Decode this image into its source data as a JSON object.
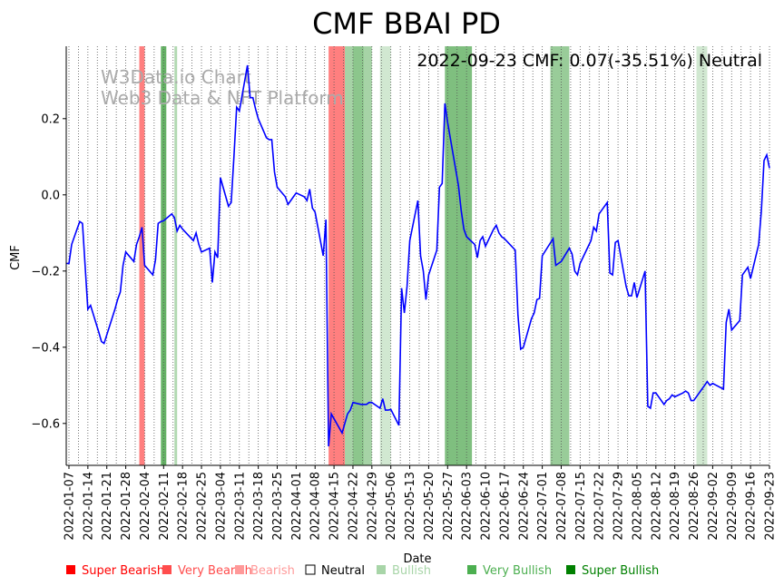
{
  "chart_data": {
    "type": "line",
    "title": "CMF BBAI PD",
    "annotation": "2022-09-23 CMF: 0.07(-35.51%) Neutral",
    "watermark": [
      "W3Data.io Chart",
      "Web3 Data & NFT Platform"
    ],
    "xlabel": "Date",
    "ylabel": "CMF",
    "xlim": [
      "2022-01-06",
      "2022-09-23"
    ],
    "ylim": [
      -0.71,
      0.39
    ],
    "yticks": [
      0.2,
      0.0,
      -0.2,
      -0.4,
      -0.6
    ],
    "ytick_labels": [
      "0.2",
      "0.0",
      "−0.2",
      "−0.4",
      "−0.6"
    ],
    "xticks": [
      "2022-01-07",
      "2022-01-14",
      "2022-01-21",
      "2022-01-28",
      "2022-02-04",
      "2022-02-11",
      "2022-02-18",
      "2022-02-25",
      "2022-03-04",
      "2022-03-11",
      "2022-03-18",
      "2022-03-25",
      "2022-04-01",
      "2022-04-08",
      "2022-04-15",
      "2022-04-22",
      "2022-04-29",
      "2022-05-06",
      "2022-05-13",
      "2022-05-20",
      "2022-05-27",
      "2022-06-03",
      "2022-06-10",
      "2022-06-17",
      "2022-06-24",
      "2022-07-01",
      "2022-07-08",
      "2022-07-15",
      "2022-07-22",
      "2022-07-29",
      "2022-08-05",
      "2022-08-12",
      "2022-08-19",
      "2022-08-26",
      "2022-09-02",
      "2022-09-09",
      "2022-09-16",
      "2022-09-23"
    ],
    "grid": "vertical-dotted",
    "line_color": "#0000ff",
    "series": [
      {
        "x": [
          "2022-01-06",
          "2022-01-07",
          "2022-01-08",
          "2022-01-10",
          "2022-01-11",
          "2022-01-12",
          "2022-01-13",
          "2022-01-14",
          "2022-01-15",
          "2022-01-18",
          "2022-01-19",
          "2022-01-20",
          "2022-01-24",
          "2022-01-25",
          "2022-01-26",
          "2022-01-27",
          "2022-01-28",
          "2022-01-31",
          "2022-02-01",
          "2022-02-02",
          "2022-02-03",
          "2022-02-04",
          "2022-02-07",
          "2022-02-08",
          "2022-02-09",
          "2022-02-10",
          "2022-02-11",
          "2022-02-14",
          "2022-02-15",
          "2022-02-16",
          "2022-02-17",
          "2022-02-18",
          "2022-02-22",
          "2022-02-23",
          "2022-02-24",
          "2022-02-25",
          "2022-02-28",
          "2022-03-01",
          "2022-03-02",
          "2022-03-03",
          "2022-03-04",
          "2022-03-07",
          "2022-03-08",
          "2022-03-09",
          "2022-03-10",
          "2022-03-11",
          "2022-03-14",
          "2022-03-15",
          "2022-03-16",
          "2022-03-17",
          "2022-03-18",
          "2022-03-21",
          "2022-03-22",
          "2022-03-23",
          "2022-03-24",
          "2022-03-25",
          "2022-03-28",
          "2022-03-29",
          "2022-03-30",
          "2022-03-31",
          "2022-04-01",
          "2022-04-04",
          "2022-04-05",
          "2022-04-06",
          "2022-04-07",
          "2022-04-08",
          "2022-04-11",
          "2022-04-12",
          "2022-04-13",
          "2022-04-14",
          "2022-04-18",
          "2022-04-19",
          "2022-04-20",
          "2022-04-21",
          "2022-04-22",
          "2022-04-25",
          "2022-04-26",
          "2022-04-27",
          "2022-04-28",
          "2022-04-29",
          "2022-05-02",
          "2022-05-03",
          "2022-05-04",
          "2022-05-05",
          "2022-05-06",
          "2022-05-09",
          "2022-05-10",
          "2022-05-11",
          "2022-05-12",
          "2022-05-13",
          "2022-05-16",
          "2022-05-17",
          "2022-05-18",
          "2022-05-19",
          "2022-05-20",
          "2022-05-23",
          "2022-05-24",
          "2022-05-25",
          "2022-05-26",
          "2022-05-27",
          "2022-05-31",
          "2022-06-01",
          "2022-06-02",
          "2022-06-03",
          "2022-06-06",
          "2022-06-07",
          "2022-06-08",
          "2022-06-09",
          "2022-06-10",
          "2022-06-13",
          "2022-06-14",
          "2022-06-15",
          "2022-06-16",
          "2022-06-17",
          "2022-06-21",
          "2022-06-22",
          "2022-06-23",
          "2022-06-24",
          "2022-06-27",
          "2022-06-28",
          "2022-06-29",
          "2022-06-30",
          "2022-07-01",
          "2022-07-05",
          "2022-07-06",
          "2022-07-07",
          "2022-07-08",
          "2022-07-11",
          "2022-07-12",
          "2022-07-13",
          "2022-07-14",
          "2022-07-15",
          "2022-07-18",
          "2022-07-19",
          "2022-07-20",
          "2022-07-21",
          "2022-07-22",
          "2022-07-25",
          "2022-07-26",
          "2022-07-27",
          "2022-07-28",
          "2022-07-29",
          "2022-08-01",
          "2022-08-02",
          "2022-08-03",
          "2022-08-04",
          "2022-08-05",
          "2022-08-08",
          "2022-08-09",
          "2022-08-10",
          "2022-08-11",
          "2022-08-12",
          "2022-08-15",
          "2022-08-16",
          "2022-08-17",
          "2022-08-18",
          "2022-08-19",
          "2022-08-22",
          "2022-08-23",
          "2022-08-24",
          "2022-08-25",
          "2022-08-26",
          "2022-08-29",
          "2022-08-30",
          "2022-08-31",
          "2022-09-01",
          "2022-09-02",
          "2022-09-06",
          "2022-09-07",
          "2022-09-08",
          "2022-09-09",
          "2022-09-12",
          "2022-09-13",
          "2022-09-14",
          "2022-09-15",
          "2022-09-16",
          "2022-09-19",
          "2022-09-20",
          "2022-09-21",
          "2022-09-22",
          "2022-09-23"
        ],
        "y": [
          -0.18,
          -0.18,
          -0.13,
          -0.09,
          -0.07,
          -0.075,
          -0.19,
          -0.3,
          -0.29,
          -0.36,
          -0.385,
          -0.39,
          -0.3,
          -0.275,
          -0.255,
          -0.185,
          -0.15,
          -0.175,
          -0.13,
          -0.11,
          -0.085,
          -0.185,
          -0.21,
          -0.17,
          -0.075,
          -0.07,
          -0.068,
          -0.05,
          -0.06,
          -0.095,
          -0.08,
          -0.09,
          -0.12,
          -0.1,
          -0.13,
          -0.15,
          -0.14,
          -0.23,
          -0.15,
          -0.165,
          0.045,
          -0.03,
          -0.02,
          0.1,
          0.23,
          0.22,
          0.34,
          0.255,
          0.255,
          0.225,
          0.2,
          0.15,
          0.145,
          0.145,
          0.06,
          0.02,
          -0.005,
          -0.025,
          -0.015,
          -0.005,
          0.005,
          -0.005,
          -0.015,
          0.015,
          -0.035,
          -0.045,
          -0.16,
          -0.065,
          -0.66,
          -0.575,
          -0.625,
          -0.6,
          -0.575,
          -0.565,
          -0.545,
          -0.55,
          -0.55,
          -0.55,
          -0.545,
          -0.545,
          -0.56,
          -0.535,
          -0.565,
          -0.565,
          -0.563,
          -0.605,
          -0.245,
          -0.31,
          -0.24,
          -0.12,
          -0.015,
          -0.16,
          -0.2,
          -0.275,
          -0.21,
          -0.145,
          0.02,
          0.03,
          0.24,
          0.19,
          0.025,
          -0.04,
          -0.09,
          -0.11,
          -0.13,
          -0.165,
          -0.12,
          -0.11,
          -0.135,
          -0.09,
          -0.08,
          -0.1,
          -0.11,
          -0.115,
          -0.145,
          -0.315,
          -0.405,
          -0.4,
          -0.325,
          -0.31,
          -0.275,
          -0.272,
          -0.16,
          -0.115,
          -0.185,
          -0.18,
          -0.175,
          -0.14,
          -0.155,
          -0.2,
          -0.21,
          -0.18,
          -0.135,
          -0.12,
          -0.085,
          -0.095,
          -0.05,
          -0.02,
          -0.205,
          -0.21,
          -0.125,
          -0.12,
          -0.24,
          -0.265,
          -0.265,
          -0.23,
          -0.27,
          -0.2,
          -0.555,
          -0.56,
          -0.52,
          -0.52,
          -0.55,
          -0.54,
          -0.535,
          -0.525,
          -0.53,
          -0.52,
          -0.515,
          -0.52,
          -0.54,
          -0.54,
          -0.51,
          -0.5,
          -0.49,
          -0.5,
          -0.495,
          -0.51,
          -0.335,
          -0.3,
          -0.355,
          -0.33,
          -0.21,
          -0.2,
          -0.19,
          -0.22,
          -0.13,
          -0.04,
          0.09,
          0.105,
          0.07
        ]
      }
    ],
    "shaded_regions": [
      {
        "start": "2022-02-02",
        "end": "2022-02-04",
        "sentiment": "Super Bearish",
        "color": "#ff0000",
        "opacity": 0.5
      },
      {
        "start": "2022-02-10",
        "end": "2022-02-12",
        "sentiment": "Very Bullish",
        "color": "#008000",
        "opacity": 0.6
      },
      {
        "start": "2022-02-15",
        "end": "2022-02-16",
        "sentiment": "Bullish",
        "color": "#008000",
        "opacity": 0.3
      },
      {
        "start": "2022-04-13",
        "end": "2022-04-19",
        "sentiment": "Super Bearish",
        "color": "#ff0000",
        "opacity": 0.5
      },
      {
        "start": "2022-04-19",
        "end": "2022-04-22",
        "sentiment": "Bullish",
        "color": "#008000",
        "opacity": 0.35
      },
      {
        "start": "2022-04-22",
        "end": "2022-04-26",
        "sentiment": "Very Bullish",
        "color": "#008000",
        "opacity": 0.45
      },
      {
        "start": "2022-04-26",
        "end": "2022-04-29",
        "sentiment": "Bullish",
        "color": "#008000",
        "opacity": 0.35
      },
      {
        "start": "2022-05-02",
        "end": "2022-05-06",
        "sentiment": "Bullish",
        "color": "#008000",
        "opacity": 0.18
      },
      {
        "start": "2022-05-26",
        "end": "2022-06-05",
        "sentiment": "Super Bullish",
        "color": "#008000",
        "opacity": 0.5
      },
      {
        "start": "2022-07-04",
        "end": "2022-07-11",
        "sentiment": "Very Bullish",
        "color": "#008000",
        "opacity": 0.4
      },
      {
        "start": "2022-08-27",
        "end": "2022-08-31",
        "sentiment": "Bullish",
        "color": "#008000",
        "opacity": 0.18
      }
    ],
    "legend": {
      "placement": "bottom",
      "entries": [
        {
          "label": "Super Bearish",
          "color": "#ff0000"
        },
        {
          "label": "Very Bearish",
          "color": "#ff4d4d"
        },
        {
          "label": "Bearish",
          "color": "#ff9999"
        },
        {
          "label": "Neutral",
          "color": "#000000"
        },
        {
          "label": "Bullish",
          "color": "#a8d5a8"
        },
        {
          "label": "Very Bullish",
          "color": "#4caf50"
        },
        {
          "label": "Super Bullish",
          "color": "#008000"
        }
      ]
    }
  }
}
